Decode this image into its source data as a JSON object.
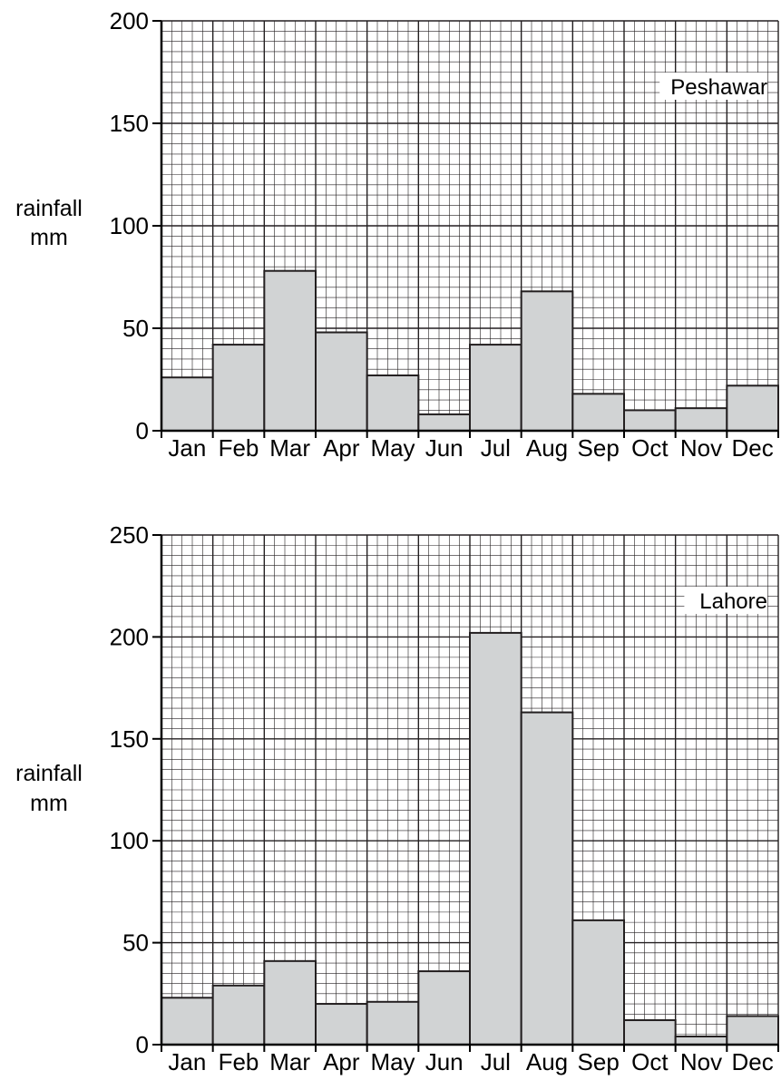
{
  "chart_data": [
    {
      "type": "bar",
      "title": "Peshawar",
      "ylabel": "rainfall mm",
      "xlabel": "",
      "categories": [
        "Jan",
        "Feb",
        "Mar",
        "Apr",
        "May",
        "Jun",
        "Jul",
        "Aug",
        "Sep",
        "Oct",
        "Nov",
        "Dec"
      ],
      "values": [
        26,
        42,
        78,
        48,
        27,
        8,
        42,
        68,
        18,
        10,
        11,
        22
      ],
      "ylim": [
        0,
        200
      ],
      "yticks": [
        0,
        50,
        100,
        150,
        200
      ],
      "grid": true,
      "legend_position": "top-right",
      "colors": {
        "bar_fill": "#d1d3d4",
        "bar_stroke": "#231f20",
        "grid": "#231f20"
      }
    },
    {
      "type": "bar",
      "title": "Lahore",
      "ylabel": "rainfall mm",
      "xlabel": "",
      "categories": [
        "Jan",
        "Feb",
        "Mar",
        "Apr",
        "May",
        "Jun",
        "Jul",
        "Aug",
        "Sep",
        "Oct",
        "Nov",
        "Dec"
      ],
      "values": [
        23,
        29,
        41,
        20,
        21,
        36,
        202,
        163,
        61,
        12,
        4,
        14
      ],
      "ylim": [
        0,
        250
      ],
      "yticks": [
        0,
        50,
        100,
        150,
        200,
        250
      ],
      "grid": true,
      "legend_position": "top-right",
      "colors": {
        "bar_fill": "#d1d3d4",
        "bar_stroke": "#231f20",
        "grid": "#231f20"
      }
    }
  ]
}
